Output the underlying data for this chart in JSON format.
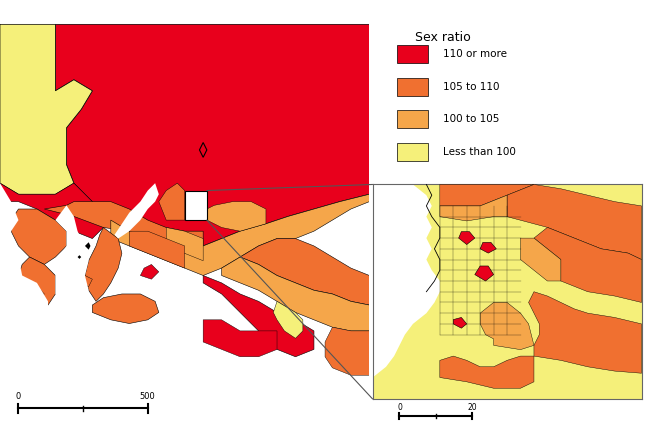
{
  "legend_title": "Sex ratio",
  "legend_items": [
    {
      "label": "110 or more",
      "color": "#e8001c"
    },
    {
      "label": "105 to 110",
      "color": "#f07030"
    },
    {
      "label": "100 to 105",
      "color": "#f5a64a"
    },
    {
      "label": "Less than 100",
      "color": "#f5f07a"
    }
  ],
  "background_color": "#ffffff",
  "colors": {
    "red": "#e8001c",
    "dark_orange": "#f07030",
    "light_orange": "#f5a64a",
    "yellow": "#f5f07a",
    "black": "#000000",
    "white": "#ffffff"
  },
  "main_map": {
    "xlim": [
      0,
      10
    ],
    "ylim": [
      0,
      10
    ]
  }
}
